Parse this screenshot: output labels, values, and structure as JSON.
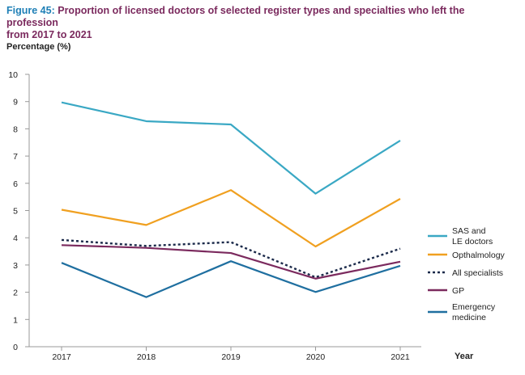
{
  "figure": {
    "label": "Figure 45:",
    "title_line1": "Proportion of licensed doctors of selected register types and specialties who left the profession",
    "title_line2": "from 2017 to 2021"
  },
  "chart_data": {
    "type": "line",
    "title": "Proportion of licensed doctors of selected register types and specialties who left the profession from 2017 to 2021",
    "ylabel": "Percentage (%)",
    "xlabel": "Year",
    "x": [
      "2017",
      "2018",
      "2019",
      "2020",
      "2021"
    ],
    "ylim": [
      0,
      10
    ],
    "yticks": [
      0,
      1,
      2,
      3,
      4,
      5,
      6,
      7,
      8,
      9,
      10
    ],
    "grid": false,
    "legend_position": "right",
    "series": [
      {
        "name": "SAS and LE doctors",
        "name_lines": [
          "SAS and",
          "LE doctors"
        ],
        "color": "#3aa8c4",
        "style": "solid",
        "values": [
          8.97,
          8.28,
          8.16,
          5.62,
          7.57
        ]
      },
      {
        "name": "Opthalmology",
        "name_lines": [
          "Opthalmology"
        ],
        "color": "#f0a020",
        "style": "solid",
        "values": [
          5.03,
          4.47,
          5.75,
          3.68,
          5.43
        ]
      },
      {
        "name": "All specialists",
        "name_lines": [
          "All specialists"
        ],
        "color": "#1b2a4a",
        "style": "dotted",
        "values": [
          3.92,
          3.7,
          3.84,
          2.55,
          3.6
        ]
      },
      {
        "name": "GP",
        "name_lines": [
          "GP"
        ],
        "color": "#7b2a5e",
        "style": "solid",
        "values": [
          3.73,
          3.63,
          3.44,
          2.5,
          3.12
        ]
      },
      {
        "name": "Emergency medicine",
        "name_lines": [
          "Emergency",
          "medicine"
        ],
        "color": "#1f6fa0",
        "style": "solid",
        "values": [
          3.08,
          1.82,
          3.14,
          2.01,
          2.97
        ]
      }
    ]
  }
}
